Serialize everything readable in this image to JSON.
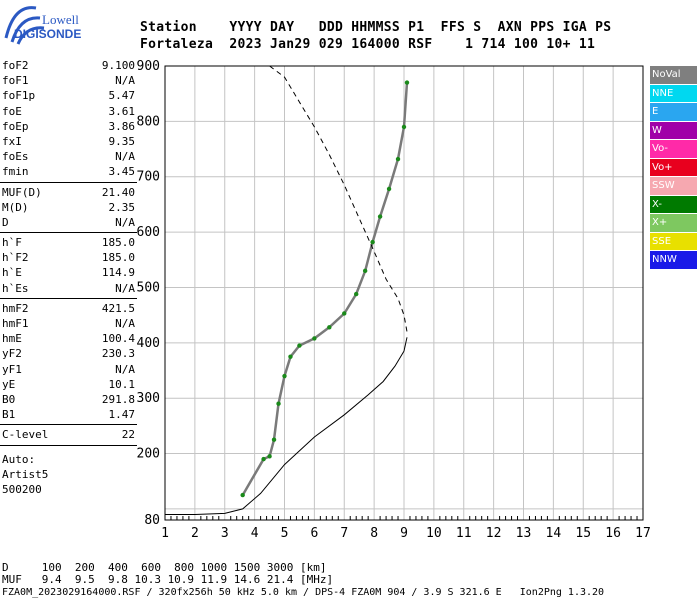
{
  "logo": {
    "line1": "Lowell",
    "line2": "DIGISONDE"
  },
  "header": {
    "line1": "Station    YYYY DAY   DDD HHMMSS P1  FFS S  AXN PPS IGA PS",
    "line2": "Fortaleza  2023 Jan29 029 164000 RSF    1 714 100 10+ 11"
  },
  "params": {
    "group1": [
      {
        "name": "foF2",
        "value": "9.100"
      },
      {
        "name": "foF1",
        "value": "N/A"
      },
      {
        "name": "foF1p",
        "value": "5.47"
      },
      {
        "name": "foE",
        "value": "3.61"
      },
      {
        "name": "foEp",
        "value": "3.86"
      },
      {
        "name": "fxI",
        "value": "9.35"
      },
      {
        "name": "foEs",
        "value": "N/A"
      },
      {
        "name": "fmin",
        "value": "3.45"
      }
    ],
    "group2": [
      {
        "name": "MUF(D)",
        "value": "21.40"
      },
      {
        "name": "M(D)",
        "value": "2.35"
      },
      {
        "name": "D",
        "value": "N/A"
      }
    ],
    "group3": [
      {
        "name": "h`F",
        "value": "185.0"
      },
      {
        "name": "h`F2",
        "value": "185.0"
      },
      {
        "name": "h`E",
        "value": "114.9"
      },
      {
        "name": "h`Es",
        "value": "N/A"
      }
    ],
    "group4": [
      {
        "name": "hmF2",
        "value": "421.5"
      },
      {
        "name": "hmF1",
        "value": "N/A"
      },
      {
        "name": "hmE",
        "value": "100.4"
      },
      {
        "name": "yF2",
        "value": "230.3"
      },
      {
        "name": "yF1",
        "value": "N/A"
      },
      {
        "name": "yE",
        "value": "10.1"
      },
      {
        "name": "B0",
        "value": "291.8"
      },
      {
        "name": "B1",
        "value": "1.47"
      }
    ],
    "group5": [
      {
        "name": "C-level",
        "value": "22"
      }
    ],
    "auto": [
      "Auto:",
      "Artist5",
      "500200"
    ]
  },
  "legend": [
    {
      "label": "NoVal",
      "color": "#7f7f7f"
    },
    {
      "label": "NNE",
      "color": "#00d8f0"
    },
    {
      "label": "E",
      "color": "#2aa6f0"
    },
    {
      "label": "W",
      "color": "#a000a8"
    },
    {
      "label": "Vo-",
      "color": "#ff2aa8"
    },
    {
      "label": "Vo+",
      "color": "#e8001e"
    },
    {
      "label": "SSW",
      "color": "#f6a8b0"
    },
    {
      "label": "X-",
      "color": "#007a00"
    },
    {
      "label": "X+",
      "color": "#7ec860"
    },
    {
      "label": "SSE",
      "color": "#e8e000"
    },
    {
      "label": "NNW",
      "color": "#1a1ae8"
    }
  ],
  "footer": {
    "d_line": "D     100  200  400  600  800 1000 1500 3000 [km]",
    "muf_line": "MUF   9.4  9.5  9.8 10.3 10.9 11.9 14.6 21.4 [MHz]",
    "file_line": "FZA0M_2023029164000.RSF / 320fx256h 50 kHz 5.0 km / DPS-4 FZA0M 904 / 3.9 S 321.6 E   Ion2Png 1.3.20"
  },
  "chart_data": {
    "type": "scatter",
    "xlim": [
      1,
      17
    ],
    "ylim": [
      80,
      900
    ],
    "xticks": [
      1,
      2,
      3,
      4,
      5,
      6,
      7,
      8,
      9,
      10,
      11,
      12,
      13,
      14,
      15,
      16,
      17
    ],
    "yticks": [
      80,
      200,
      300,
      400,
      500,
      600,
      700,
      800,
      900
    ],
    "grid": true,
    "series": [
      {
        "kind": "profile",
        "color": "#000000",
        "points": [
          [
            1.0,
            90
          ],
          [
            2.0,
            90
          ],
          [
            3.0,
            92
          ],
          [
            3.6,
            100
          ],
          [
            4.2,
            128
          ],
          [
            5.0,
            180
          ],
          [
            6.0,
            230
          ],
          [
            7.0,
            270
          ],
          [
            7.8,
            306
          ],
          [
            8.3,
            330
          ],
          [
            8.7,
            358
          ],
          [
            9.0,
            385
          ],
          [
            9.1,
            410
          ]
        ]
      },
      {
        "kind": "echo-trace",
        "color": "#7a7a7a",
        "points": [
          [
            3.6,
            125
          ],
          [
            4.3,
            190
          ],
          [
            4.5,
            195
          ],
          [
            4.65,
            225
          ],
          [
            4.8,
            290
          ],
          [
            5.0,
            340
          ],
          [
            5.2,
            375
          ],
          [
            5.5,
            395
          ],
          [
            6.0,
            408
          ],
          [
            6.5,
            428
          ],
          [
            7.0,
            453
          ],
          [
            7.4,
            488
          ],
          [
            7.7,
            530
          ],
          [
            7.95,
            582
          ],
          [
            8.2,
            628
          ],
          [
            8.5,
            678
          ],
          [
            8.8,
            732
          ],
          [
            9.0,
            790
          ],
          [
            9.1,
            870
          ]
        ]
      },
      {
        "kind": "model",
        "color": "#000000",
        "dashed": true,
        "points": [
          [
            4.5,
            900
          ],
          [
            5.0,
            880
          ],
          [
            5.5,
            835
          ],
          [
            6.0,
            790
          ],
          [
            6.5,
            740
          ],
          [
            7.0,
            685
          ],
          [
            7.5,
            625
          ],
          [
            8.0,
            565
          ],
          [
            8.4,
            515
          ],
          [
            8.8,
            480
          ],
          [
            9.0,
            450
          ],
          [
            9.1,
            420
          ]
        ]
      }
    ]
  }
}
